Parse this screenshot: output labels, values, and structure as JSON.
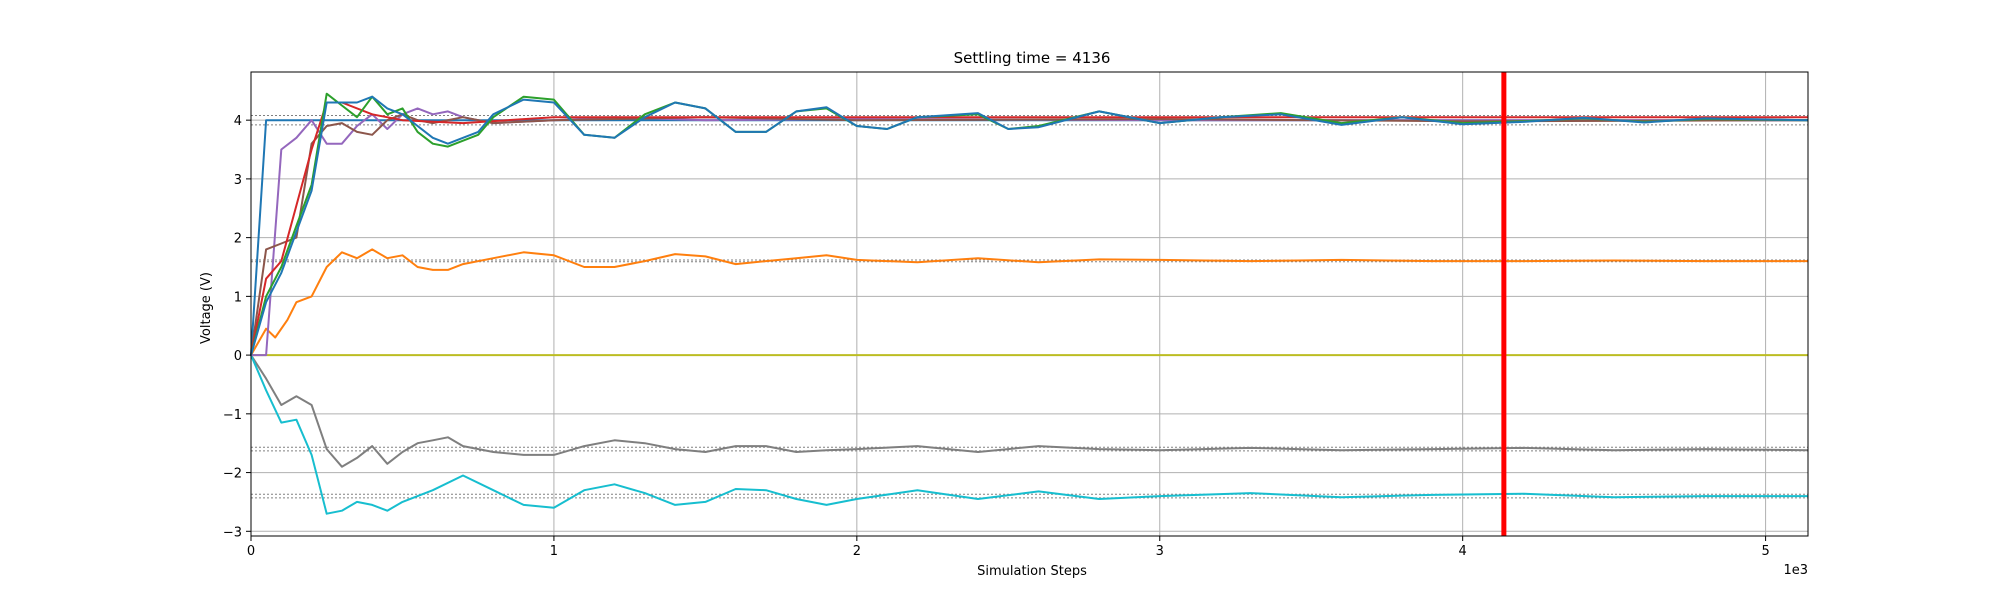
{
  "chart_data": {
    "type": "line",
    "title": "Settling time = 4136",
    "xlabel": "Simulation Steps",
    "ylabel": "Voltage (V)",
    "x_scale_label": "1e3",
    "xlim": [
      0,
      5.14
    ],
    "ylim": [
      -3.08,
      4.82
    ],
    "grid": true,
    "x_ticks": [
      0,
      1,
      2,
      3,
      4,
      5
    ],
    "x_tick_labels": [
      "0",
      "1",
      "2",
      "3",
      "4",
      "5"
    ],
    "y_ticks": [
      -3,
      -2,
      -1,
      0,
      1,
      2,
      3,
      4
    ],
    "y_tick_labels": [
      "−3",
      "−2",
      "−1",
      "0",
      "1",
      "2",
      "3",
      "4"
    ],
    "settling_time": 4.136,
    "settling_line_color": "#ff0000",
    "reference_lines": [
      4.08,
      3.92,
      1.62,
      1.59,
      -1.57,
      -1.63,
      -2.37,
      -2.43
    ],
    "reference_line_color": "#808080",
    "series": [
      {
        "color": "#1f77b4",
        "points": [
          [
            0,
            0
          ],
          [
            0.05,
            4.0
          ],
          [
            0.2,
            4.0
          ],
          [
            0.4,
            4.0
          ],
          [
            0.6,
            4.0
          ],
          [
            1.0,
            4.0
          ],
          [
            2.0,
            4.0
          ],
          [
            3.0,
            4.0
          ],
          [
            4.0,
            4.0
          ],
          [
            5.14,
            4.0
          ]
        ]
      },
      {
        "color": "#bcbd22",
        "points": [
          [
            0,
            0
          ],
          [
            5.14,
            0
          ]
        ]
      },
      {
        "color": "#ff7f0e",
        "points": [
          [
            0,
            0
          ],
          [
            0.05,
            0.45
          ],
          [
            0.08,
            0.3
          ],
          [
            0.12,
            0.6
          ],
          [
            0.15,
            0.9
          ],
          [
            0.2,
            1.0
          ],
          [
            0.25,
            1.5
          ],
          [
            0.3,
            1.75
          ],
          [
            0.35,
            1.65
          ],
          [
            0.4,
            1.8
          ],
          [
            0.45,
            1.65
          ],
          [
            0.5,
            1.7
          ],
          [
            0.55,
            1.5
          ],
          [
            0.6,
            1.45
          ],
          [
            0.65,
            1.45
          ],
          [
            0.7,
            1.55
          ],
          [
            0.8,
            1.65
          ],
          [
            0.9,
            1.75
          ],
          [
            1.0,
            1.7
          ],
          [
            1.1,
            1.5
          ],
          [
            1.2,
            1.5
          ],
          [
            1.3,
            1.6
          ],
          [
            1.4,
            1.72
          ],
          [
            1.5,
            1.68
          ],
          [
            1.6,
            1.55
          ],
          [
            1.7,
            1.6
          ],
          [
            1.8,
            1.65
          ],
          [
            1.9,
            1.7
          ],
          [
            2.0,
            1.62
          ],
          [
            2.2,
            1.58
          ],
          [
            2.4,
            1.65
          ],
          [
            2.6,
            1.58
          ],
          [
            2.8,
            1.63
          ],
          [
            3.0,
            1.62
          ],
          [
            3.3,
            1.6
          ],
          [
            3.6,
            1.62
          ],
          [
            3.9,
            1.6
          ],
          [
            4.2,
            1.6
          ],
          [
            4.5,
            1.61
          ],
          [
            4.8,
            1.6
          ],
          [
            5.14,
            1.6
          ]
        ]
      },
      {
        "color": "#7f7f7f",
        "points": [
          [
            0,
            0
          ],
          [
            0.05,
            -0.4
          ],
          [
            0.1,
            -0.85
          ],
          [
            0.15,
            -0.7
          ],
          [
            0.2,
            -0.85
          ],
          [
            0.25,
            -1.6
          ],
          [
            0.3,
            -1.9
          ],
          [
            0.35,
            -1.75
          ],
          [
            0.4,
            -1.55
          ],
          [
            0.45,
            -1.85
          ],
          [
            0.5,
            -1.65
          ],
          [
            0.55,
            -1.5
          ],
          [
            0.6,
            -1.45
          ],
          [
            0.65,
            -1.4
          ],
          [
            0.7,
            -1.55
          ],
          [
            0.8,
            -1.65
          ],
          [
            0.9,
            -1.7
          ],
          [
            1.0,
            -1.7
          ],
          [
            1.1,
            -1.55
          ],
          [
            1.2,
            -1.45
          ],
          [
            1.3,
            -1.5
          ],
          [
            1.4,
            -1.6
          ],
          [
            1.5,
            -1.65
          ],
          [
            1.6,
            -1.55
          ],
          [
            1.7,
            -1.55
          ],
          [
            1.8,
            -1.65
          ],
          [
            1.9,
            -1.62
          ],
          [
            2.0,
            -1.6
          ],
          [
            2.2,
            -1.55
          ],
          [
            2.4,
            -1.65
          ],
          [
            2.6,
            -1.55
          ],
          [
            2.8,
            -1.6
          ],
          [
            3.0,
            -1.62
          ],
          [
            3.3,
            -1.58
          ],
          [
            3.6,
            -1.62
          ],
          [
            3.9,
            -1.6
          ],
          [
            4.2,
            -1.58
          ],
          [
            4.5,
            -1.62
          ],
          [
            4.8,
            -1.6
          ],
          [
            5.14,
            -1.62
          ]
        ]
      },
      {
        "color": "#17becf",
        "points": [
          [
            0,
            0
          ],
          [
            0.05,
            -0.6
          ],
          [
            0.1,
            -1.15
          ],
          [
            0.15,
            -1.1
          ],
          [
            0.2,
            -1.7
          ],
          [
            0.25,
            -2.7
          ],
          [
            0.3,
            -2.65
          ],
          [
            0.35,
            -2.5
          ],
          [
            0.4,
            -2.55
          ],
          [
            0.45,
            -2.65
          ],
          [
            0.5,
            -2.5
          ],
          [
            0.6,
            -2.3
          ],
          [
            0.7,
            -2.05
          ],
          [
            0.8,
            -2.3
          ],
          [
            0.9,
            -2.55
          ],
          [
            1.0,
            -2.6
          ],
          [
            1.1,
            -2.3
          ],
          [
            1.2,
            -2.2
          ],
          [
            1.3,
            -2.35
          ],
          [
            1.4,
            -2.55
          ],
          [
            1.5,
            -2.5
          ],
          [
            1.6,
            -2.28
          ],
          [
            1.7,
            -2.3
          ],
          [
            1.8,
            -2.45
          ],
          [
            1.9,
            -2.55
          ],
          [
            2.0,
            -2.45
          ],
          [
            2.2,
            -2.3
          ],
          [
            2.4,
            -2.45
          ],
          [
            2.6,
            -2.32
          ],
          [
            2.8,
            -2.45
          ],
          [
            3.0,
            -2.4
          ],
          [
            3.3,
            -2.35
          ],
          [
            3.6,
            -2.42
          ],
          [
            3.9,
            -2.38
          ],
          [
            4.2,
            -2.36
          ],
          [
            4.5,
            -2.42
          ],
          [
            4.8,
            -2.4
          ],
          [
            5.14,
            -2.4
          ]
        ]
      },
      {
        "color": "#9467bd",
        "points": [
          [
            0,
            0
          ],
          [
            0.05,
            0
          ],
          [
            0.1,
            3.5
          ],
          [
            0.15,
            3.7
          ],
          [
            0.2,
            4.0
          ],
          [
            0.25,
            3.6
          ],
          [
            0.3,
            3.6
          ],
          [
            0.35,
            3.9
          ],
          [
            0.4,
            4.1
          ],
          [
            0.45,
            3.85
          ],
          [
            0.5,
            4.1
          ],
          [
            0.55,
            4.2
          ],
          [
            0.6,
            4.1
          ],
          [
            0.65,
            4.15
          ],
          [
            0.7,
            4.05
          ],
          [
            0.8,
            3.95
          ],
          [
            1.0,
            4.0
          ],
          [
            1.2,
            4.05
          ],
          [
            1.5,
            4.0
          ],
          [
            2.0,
            4.02
          ],
          [
            3.0,
            4.0
          ],
          [
            4.0,
            4.0
          ],
          [
            5.14,
            4.0
          ]
        ]
      },
      {
        "color": "#8c564b",
        "points": [
          [
            0,
            0
          ],
          [
            0.05,
            1.8
          ],
          [
            0.1,
            1.9
          ],
          [
            0.15,
            2.0
          ],
          [
            0.2,
            3.6
          ],
          [
            0.25,
            3.9
          ],
          [
            0.3,
            3.95
          ],
          [
            0.35,
            3.8
          ],
          [
            0.4,
            3.75
          ],
          [
            0.45,
            4.0
          ],
          [
            0.5,
            4.1
          ],
          [
            0.55,
            4.0
          ],
          [
            0.6,
            3.95
          ],
          [
            0.7,
            4.05
          ],
          [
            0.8,
            3.95
          ],
          [
            1.0,
            4.0
          ],
          [
            1.5,
            4.05
          ],
          [
            2.0,
            4.0
          ],
          [
            3.0,
            4.02
          ],
          [
            4.0,
            3.98
          ],
          [
            5.14,
            4.0
          ]
        ]
      },
      {
        "color": "#d62728",
        "points": [
          [
            0,
            0
          ],
          [
            0.05,
            1.3
          ],
          [
            0.1,
            1.6
          ],
          [
            0.2,
            3.5
          ],
          [
            0.25,
            4.3
          ],
          [
            0.3,
            4.3
          ],
          [
            0.4,
            4.1
          ],
          [
            0.5,
            4.0
          ],
          [
            0.7,
            3.95
          ],
          [
            1.0,
            4.05
          ],
          [
            1.5,
            4.05
          ],
          [
            2.0,
            4.05
          ],
          [
            3.0,
            4.05
          ],
          [
            4.0,
            4.05
          ],
          [
            5.14,
            4.05
          ]
        ]
      },
      {
        "color": "#2ca02c",
        "points": [
          [
            0,
            0
          ],
          [
            0.05,
            1.0
          ],
          [
            0.1,
            1.5
          ],
          [
            0.15,
            2.2
          ],
          [
            0.2,
            2.9
          ],
          [
            0.25,
            4.45
          ],
          [
            0.3,
            4.25
          ],
          [
            0.35,
            4.05
          ],
          [
            0.4,
            4.4
          ],
          [
            0.45,
            4.1
          ],
          [
            0.5,
            4.2
          ],
          [
            0.55,
            3.8
          ],
          [
            0.6,
            3.6
          ],
          [
            0.65,
            3.55
          ],
          [
            0.7,
            3.65
          ],
          [
            0.75,
            3.75
          ],
          [
            0.8,
            4.05
          ],
          [
            0.9,
            4.4
          ],
          [
            1.0,
            4.35
          ],
          [
            1.1,
            3.75
          ],
          [
            1.2,
            3.7
          ],
          [
            1.3,
            4.1
          ],
          [
            1.4,
            4.3
          ],
          [
            1.5,
            4.2
          ],
          [
            1.6,
            3.8
          ],
          [
            1.7,
            3.8
          ],
          [
            1.8,
            4.15
          ],
          [
            1.9,
            4.2
          ],
          [
            2.0,
            3.9
          ],
          [
            2.1,
            3.85
          ],
          [
            2.2,
            4.05
          ],
          [
            2.4,
            4.1
          ],
          [
            2.5,
            3.85
          ],
          [
            2.6,
            3.9
          ],
          [
            2.8,
            4.15
          ],
          [
            3.0,
            3.95
          ],
          [
            3.2,
            4.05
          ],
          [
            3.4,
            4.12
          ],
          [
            3.6,
            3.95
          ],
          [
            3.8,
            4.05
          ],
          [
            4.0,
            3.95
          ],
          [
            4.2,
            3.98
          ],
          [
            4.4,
            4.03
          ],
          [
            4.6,
            3.97
          ],
          [
            4.8,
            4.02
          ],
          [
            5.14,
            4.0
          ]
        ]
      },
      {
        "color": "#1f77b4",
        "points": [
          [
            0,
            0
          ],
          [
            0.05,
            0.9
          ],
          [
            0.1,
            1.4
          ],
          [
            0.15,
            2.1
          ],
          [
            0.2,
            2.8
          ],
          [
            0.25,
            4.3
          ],
          [
            0.3,
            4.3
          ],
          [
            0.35,
            4.3
          ],
          [
            0.4,
            4.4
          ],
          [
            0.45,
            4.2
          ],
          [
            0.5,
            4.1
          ],
          [
            0.55,
            3.9
          ],
          [
            0.6,
            3.7
          ],
          [
            0.65,
            3.6
          ],
          [
            0.7,
            3.7
          ],
          [
            0.75,
            3.8
          ],
          [
            0.8,
            4.1
          ],
          [
            0.9,
            4.35
          ],
          [
            1.0,
            4.3
          ],
          [
            1.1,
            3.75
          ],
          [
            1.2,
            3.7
          ],
          [
            1.3,
            4.05
          ],
          [
            1.4,
            4.3
          ],
          [
            1.5,
            4.2
          ],
          [
            1.6,
            3.8
          ],
          [
            1.7,
            3.8
          ],
          [
            1.8,
            4.15
          ],
          [
            1.9,
            4.22
          ],
          [
            2.0,
            3.9
          ],
          [
            2.1,
            3.85
          ],
          [
            2.2,
            4.05
          ],
          [
            2.4,
            4.12
          ],
          [
            2.5,
            3.85
          ],
          [
            2.6,
            3.88
          ],
          [
            2.8,
            4.15
          ],
          [
            3.0,
            3.95
          ],
          [
            3.2,
            4.05
          ],
          [
            3.4,
            4.1
          ],
          [
            3.6,
            3.92
          ],
          [
            3.8,
            4.05
          ],
          [
            4.0,
            3.93
          ],
          [
            4.2,
            3.97
          ],
          [
            4.4,
            4.04
          ],
          [
            4.6,
            3.96
          ],
          [
            4.8,
            4.03
          ],
          [
            5.14,
            4.0
          ]
        ]
      }
    ]
  }
}
